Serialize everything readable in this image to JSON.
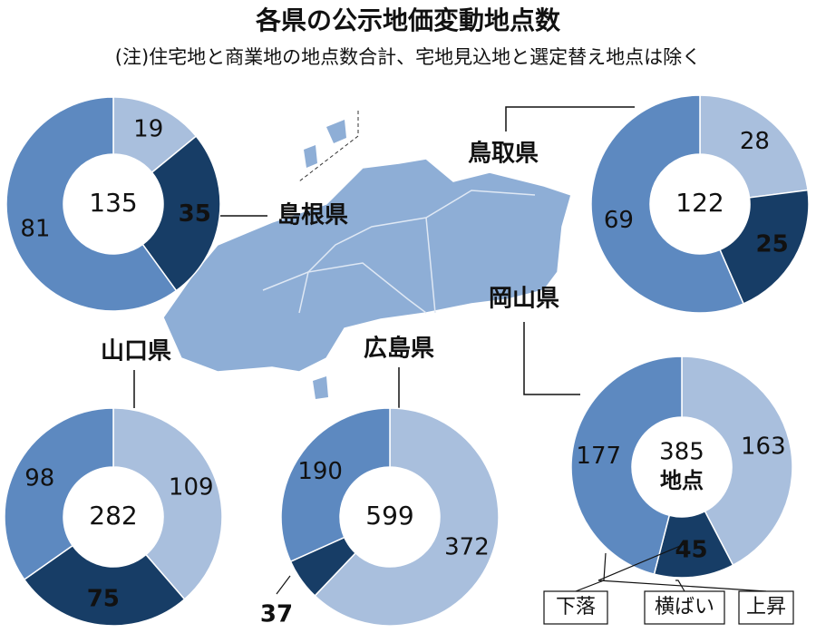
{
  "title": "各県の公示地価変動地点数",
  "subtitle": "(注)住宅地と商業地の地点数合計、宅地見込地と選定替え地点は除く",
  "chart_data": [
    {
      "type": "donut",
      "name": "島根県",
      "total": 135,
      "values": [
        19,
        35,
        81
      ],
      "colors": [
        "#a9bfdd",
        "#173d66",
        "#5d89c0"
      ]
    },
    {
      "type": "donut",
      "name": "鳥取県",
      "total": 122,
      "values": [
        28,
        25,
        69
      ],
      "colors": [
        "#a9bfdd",
        "#173d66",
        "#5d89c0"
      ]
    },
    {
      "type": "donut",
      "name": "山口県",
      "total": 282,
      "values": [
        109,
        75,
        98
      ],
      "colors": [
        "#a9bfdd",
        "#173d66",
        "#5d89c0"
      ]
    },
    {
      "type": "donut",
      "name": "広島県",
      "total": 599,
      "values": [
        372,
        37,
        190
      ],
      "colors": [
        "#a9bfdd",
        "#173d66",
        "#5d89c0"
      ]
    },
    {
      "type": "donut",
      "name": "岡山県",
      "total": 385,
      "total_unit": "地点",
      "values": [
        163,
        45,
        177
      ],
      "categories": [
        "上昇",
        "横ばい",
        "下落"
      ],
      "colors": [
        "#a9bfdd",
        "#173d66",
        "#5d89c0"
      ]
    }
  ]
}
